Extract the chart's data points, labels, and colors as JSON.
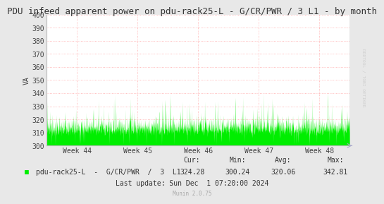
{
  "title": "PDU infeed apparent power on pdu-rack25-L - G/CR/PWR / 3 L1 - by month",
  "ylabel": "VA",
  "background_color": "#e8e8e8",
  "plot_bg_color": "#ffffff",
  "grid_color": "#ffaaaa",
  "ylim": [
    300,
    400
  ],
  "yticks": [
    300,
    310,
    320,
    330,
    340,
    350,
    360,
    370,
    380,
    390,
    400
  ],
  "xtick_labels": [
    "Week 44",
    "Week 45",
    "Week 46",
    "Week 47",
    "Week 48"
  ],
  "fill_color": "#00ee00",
  "line_color": "#00cc00",
  "legend_label": "pdu-rack25-L  -  G/CR/PWR  /  3  L1",
  "cur": "324.28",
  "min": "300.24",
  "avg": "320.06",
  "max": "342.81",
  "last_update": "Last update: Sun Dec  1 07:20:00 2024",
  "munin_version": "Munin 2.0.75",
  "watermark": "RRDTOOL / TOBI OETIKER",
  "title_fontsize": 9,
  "axis_fontsize": 7,
  "legend_fontsize": 7,
  "stats_fontsize": 7
}
